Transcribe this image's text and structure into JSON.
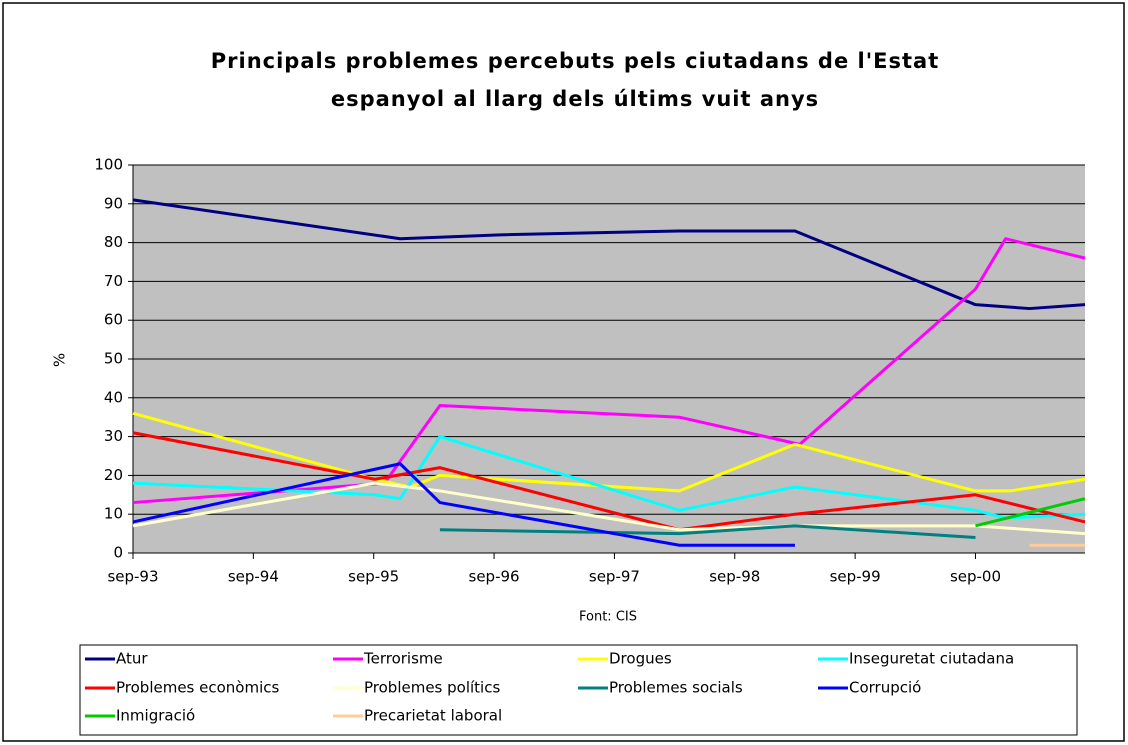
{
  "chart_data": {
    "type": "line",
    "title": [
      "Principals problemes percebuts pels ciutadans de l'Estat",
      "espanyol al llarg dels últims vuit anys"
    ],
    "ylabel": "%",
    "xlabel": "Font: CIS",
    "xlim": [
      1993.67,
      2001.58
    ],
    "xticks": [
      {
        "value": 1993.67,
        "label": "sep-93"
      },
      {
        "value": 1994.67,
        "label": "sep-94"
      },
      {
        "value": 1995.67,
        "label": "sep-95"
      },
      {
        "value": 1996.67,
        "label": "sep-96"
      },
      {
        "value": 1997.67,
        "label": "sep-97"
      },
      {
        "value": 1998.67,
        "label": "sep-98"
      },
      {
        "value": 1999.67,
        "label": "sep-99"
      },
      {
        "value": 2000.67,
        "label": "sep-00"
      }
    ],
    "ylim": [
      0,
      100
    ],
    "yticks": [
      0,
      10,
      20,
      30,
      40,
      50,
      60,
      70,
      80,
      90,
      100
    ],
    "grid": true,
    "legend": "bottom",
    "series": [
      {
        "name": "Atur",
        "color": "#000080",
        "x": [
          1993.67,
          1995.89,
          1996.72,
          1998.21,
          1999.17,
          2000.67,
          2001.12,
          2001.58
        ],
        "values": [
          91,
          81,
          82,
          83,
          83,
          64,
          63,
          64
        ]
      },
      {
        "name": "Terrorisme",
        "color": "#ff00ff",
        "x": [
          1993.67,
          1995.76,
          1996.22,
          1996.88,
          1998.21,
          1999.21,
          2000.67,
          2000.92,
          2001.58
        ],
        "values": [
          13,
          18,
          38,
          37,
          35,
          28,
          68,
          81,
          76
        ]
      },
      {
        "name": "Drogues",
        "color": "#ffff00",
        "x": [
          1993.67,
          1995.68,
          1995.97,
          1996.22,
          1998.21,
          1999.17,
          2000.67,
          2000.96,
          2001.58
        ],
        "values": [
          36,
          19,
          17,
          20,
          16,
          28,
          16,
          16,
          19
        ]
      },
      {
        "name": "Inseguretat ciutadana",
        "color": "#00ffff",
        "x": [
          1993.67,
          1995.68,
          1995.89,
          1996.22,
          1998.21,
          1999.17,
          2000.67,
          2000.92,
          2001.58
        ],
        "values": [
          18,
          15,
          14,
          30,
          11,
          17,
          11,
          9,
          10
        ]
      },
      {
        "name": "Problemes econòmics",
        "color": "#ff0000",
        "x": [
          1993.67,
          1995.68,
          1996.22,
          1998.21,
          1999.17,
          2000.67,
          2001.58
        ],
        "values": [
          31,
          19,
          22,
          6,
          10,
          15,
          8
        ]
      },
      {
        "name": "Problemes polítics",
        "color": "#ffffcc",
        "x": [
          1993.67,
          1995.68,
          1996.22,
          1998.21,
          1999.17,
          2000.67,
          2001.58
        ],
        "values": [
          7,
          18,
          16,
          6,
          7,
          7,
          5
        ]
      },
      {
        "name": "Problemes socials",
        "color": "#008080",
        "x": [
          1996.22,
          1998.21,
          1999.17,
          2000.67
        ],
        "values": [
          6,
          5,
          7,
          4
        ]
      },
      {
        "name": "Corrupció",
        "color": "#0000ff",
        "x": [
          1993.67,
          1995.89,
          1996.22,
          1998.21,
          1999.17
        ],
        "values": [
          8,
          23,
          13,
          2,
          2
        ]
      },
      {
        "name": "Inmigració",
        "color": "#00cc00",
        "x": [
          2000.67,
          2001.58
        ],
        "values": [
          7,
          14
        ]
      },
      {
        "name": "Precarietat laboral",
        "color": "#ffcc99",
        "x": [
          2001.12,
          2001.58
        ],
        "values": [
          2,
          2
        ]
      }
    ]
  }
}
